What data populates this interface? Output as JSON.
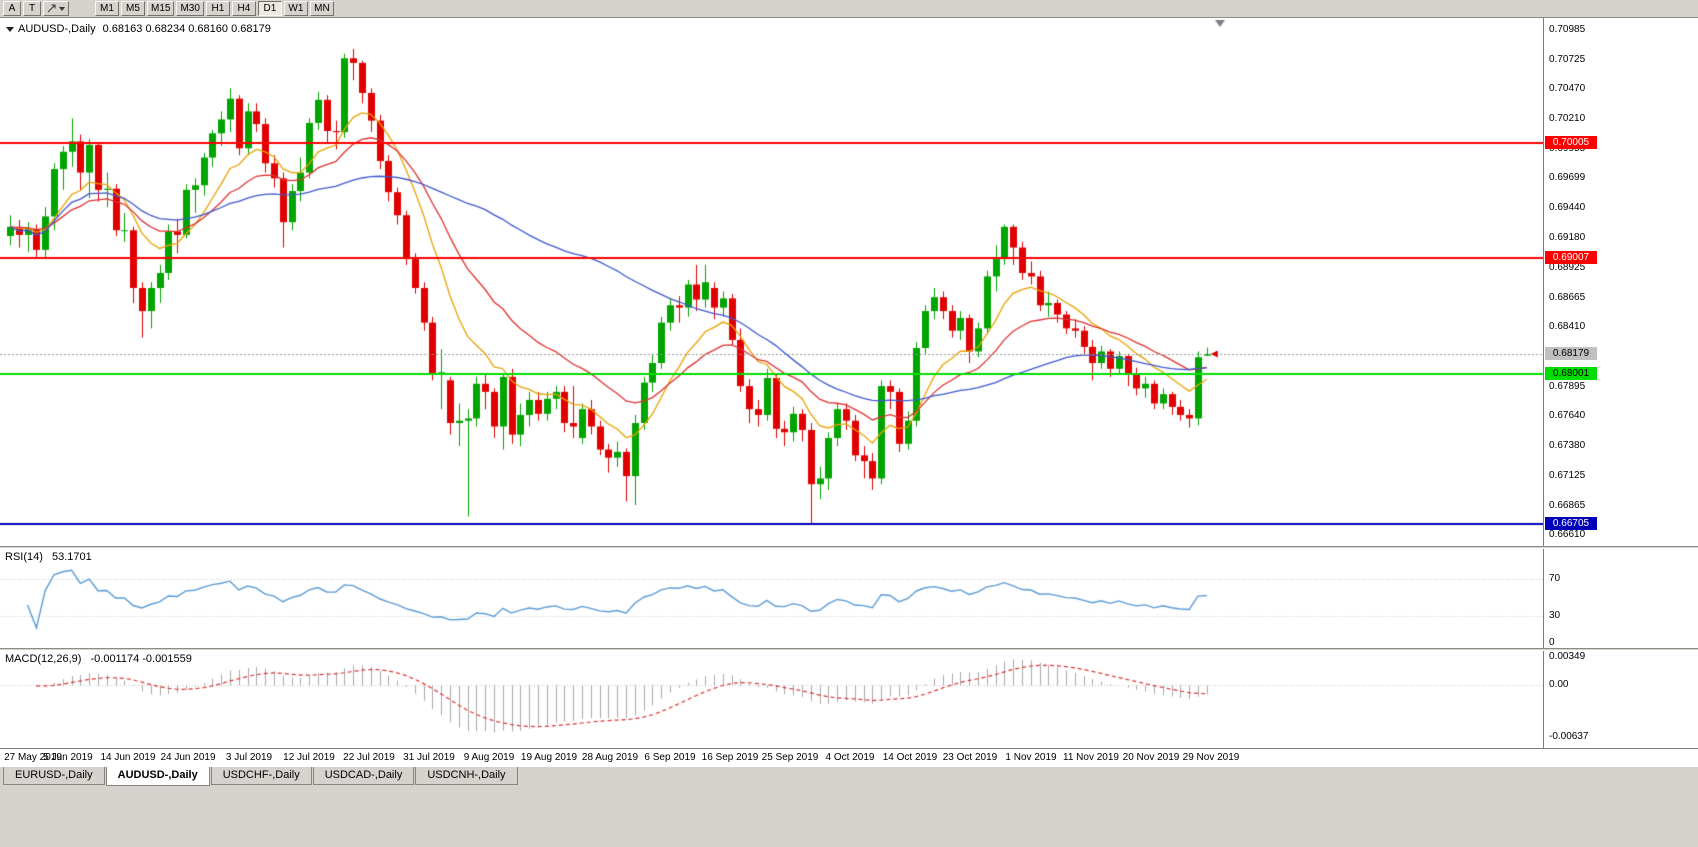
{
  "toolbar": {
    "buttons": [
      "A",
      "T"
    ],
    "timeframes": [
      "M1",
      "M5",
      "M15",
      "M30",
      "H1",
      "H4",
      "D1",
      "W1",
      "MN"
    ],
    "active_timeframe": "D1"
  },
  "chart": {
    "symbol_title": "AUDUSD-,Daily",
    "ohlc_text": "0.68163 0.68234 0.68160 0.68179"
  },
  "colors": {
    "bull": "#00a400",
    "bear": "#e00000",
    "window": "#d6d3ce",
    "background": "#ffffff",
    "bid_line": "#999999",
    "bid_label_bg": "#c0c0c0",
    "axis_text": "#000000"
  },
  "chart_data": {
    "type": "candlestick",
    "symbol": "AUDUSD",
    "timeframe": "Daily",
    "current": {
      "open": 0.68163,
      "high": 0.68234,
      "low": 0.6816,
      "close": 0.68179
    },
    "y_ticks": [
      "0.70985",
      "0.70725",
      "0.70470",
      "0.70210",
      "0.69955",
      "0.69699",
      "0.69440",
      "0.69180",
      "0.68925",
      "0.68665",
      "0.68410",
      "0.68150",
      "0.67895",
      "0.67640",
      "0.67380",
      "0.67125",
      "0.66865",
      "0.66610"
    ],
    "x_labels": [
      "27 May 2019",
      "5 Jun 2019",
      "14 Jun 2019",
      "24 Jun 2019",
      "3 Jul 2019",
      "12 Jul 2019",
      "22 Jul 2019",
      "31 Jul 2019",
      "9 Aug 2019",
      "19 Aug 2019",
      "28 Aug 2019",
      "6 Sep 2019",
      "16 Sep 2019",
      "25 Sep 2019",
      "4 Oct 2019",
      "14 Oct 2019",
      "23 Oct 2019",
      "1 Nov 2019",
      "11 Nov 2019",
      "20 Nov 2019",
      "29 Nov 2019"
    ],
    "levels": [
      {
        "price": 0.70005,
        "label": "0.70005",
        "color": "#ff0000",
        "text_color": "#ffffff"
      },
      {
        "price": 0.69007,
        "label": "0.69007",
        "color": "#ff0000",
        "text_color": "#ffffff"
      },
      {
        "price": 0.68001,
        "label": "0.68001",
        "color": "#00dd00",
        "text_color": "#000000"
      },
      {
        "price": 0.66705,
        "label": "0.66705",
        "color": "#0000bb",
        "text_color": "#ffffff"
      }
    ],
    "bid": {
      "price": 0.68179,
      "label": "0.68179"
    },
    "moving_averages": [
      {
        "type": "ema",
        "period": 10,
        "color": "#e8a200"
      },
      {
        "type": "ema",
        "period": 21,
        "color": "#e03232"
      },
      {
        "type": "sma",
        "period": 50,
        "color": "#3f58cf"
      }
    ],
    "indicators": {
      "rsi": {
        "label": "RSI(14)",
        "value": "53.1701",
        "period": 14,
        "levels": [
          70,
          30
        ],
        "axis_labels": [
          "70",
          "30",
          "0"
        ],
        "color": "#5b9bd5"
      },
      "macd": {
        "label": "MACD(12,26,9)",
        "value": "-0.001174 -0.001559",
        "fast": 12,
        "slow": 26,
        "signal": 9,
        "axis_labels": [
          {
            "text": "0.00349",
            "value": 0.00349
          },
          {
            "text": "0.00",
            "value": 0
          },
          {
            "text": "-0.00637",
            "value": -0.00637
          }
        ],
        "hist_color": "#a8a8a8",
        "signal_color": "#e03232"
      }
    },
    "candles": [
      [
        0.692,
        0.6938,
        0.6912,
        0.6928
      ],
      [
        0.6928,
        0.6934,
        0.691,
        0.6921
      ],
      [
        0.6921,
        0.6932,
        0.6906,
        0.6926
      ],
      [
        0.6926,
        0.693,
        0.6902,
        0.6908
      ],
      [
        0.6908,
        0.6945,
        0.69,
        0.6937
      ],
      [
        0.6937,
        0.6983,
        0.6925,
        0.6978
      ],
      [
        0.6978,
        0.6998,
        0.696,
        0.6993
      ],
      [
        0.6993,
        0.7022,
        0.698,
        0.7002
      ],
      [
        0.7002,
        0.7008,
        0.696,
        0.6975
      ],
      [
        0.6975,
        0.7004,
        0.6953,
        0.6999
      ],
      [
        0.6999,
        0.7,
        0.695,
        0.696
      ],
      [
        0.696,
        0.6975,
        0.6945,
        0.6961
      ],
      [
        0.6961,
        0.6965,
        0.692,
        0.6925
      ],
      [
        0.6925,
        0.694,
        0.6915,
        0.6925
      ],
      [
        0.6925,
        0.6928,
        0.6862,
        0.6875
      ],
      [
        0.6875,
        0.688,
        0.6832,
        0.6855
      ],
      [
        0.6855,
        0.688,
        0.684,
        0.6875
      ],
      [
        0.6875,
        0.6895,
        0.6862,
        0.6888
      ],
      [
        0.6888,
        0.693,
        0.6882,
        0.6924
      ],
      [
        0.6924,
        0.6935,
        0.6905,
        0.6921
      ],
      [
        0.6921,
        0.6965,
        0.6918,
        0.696
      ],
      [
        0.696,
        0.697,
        0.694,
        0.6964
      ],
      [
        0.6964,
        0.6992,
        0.6955,
        0.6988
      ],
      [
        0.6988,
        0.7012,
        0.698,
        0.7009
      ],
      [
        0.7009,
        0.7028,
        0.6998,
        0.7021
      ],
      [
        0.7021,
        0.7048,
        0.701,
        0.7039
      ],
      [
        0.7039,
        0.7042,
        0.699,
        0.6996
      ],
      [
        0.6996,
        0.7035,
        0.699,
        0.7028
      ],
      [
        0.7028,
        0.7035,
        0.701,
        0.7017
      ],
      [
        0.7017,
        0.7022,
        0.6975,
        0.6983
      ],
      [
        0.6983,
        0.699,
        0.6962,
        0.697
      ],
      [
        0.697,
        0.6975,
        0.691,
        0.6932
      ],
      [
        0.6932,
        0.6965,
        0.6925,
        0.6959
      ],
      [
        0.6959,
        0.6988,
        0.695,
        0.6975
      ],
      [
        0.6975,
        0.7022,
        0.697,
        0.7018
      ],
      [
        0.7018,
        0.7045,
        0.7012,
        0.7038
      ],
      [
        0.7038,
        0.7042,
        0.7,
        0.7011
      ],
      [
        0.7011,
        0.702,
        0.6995,
        0.701
      ],
      [
        0.701,
        0.7078,
        0.7005,
        0.7074
      ],
      [
        0.7074,
        0.7082,
        0.7055,
        0.707
      ],
      [
        0.707,
        0.7072,
        0.7035,
        0.7044
      ],
      [
        0.7044,
        0.7048,
        0.701,
        0.702
      ],
      [
        0.702,
        0.7025,
        0.6978,
        0.6985
      ],
      [
        0.6985,
        0.699,
        0.695,
        0.6958
      ],
      [
        0.6958,
        0.6962,
        0.693,
        0.6938
      ],
      [
        0.6938,
        0.6942,
        0.6895,
        0.69
      ],
      [
        0.69,
        0.6905,
        0.687,
        0.6875
      ],
      [
        0.6875,
        0.688,
        0.6838,
        0.6845
      ],
      [
        0.6845,
        0.685,
        0.6795,
        0.68
      ],
      [
        0.68,
        0.6822,
        0.677,
        0.6802
      ],
      [
        0.6795,
        0.6798,
        0.6748,
        0.6758
      ],
      [
        0.6758,
        0.6775,
        0.6738,
        0.676
      ],
      [
        0.676,
        0.677,
        0.6677,
        0.6762
      ],
      [
        0.6762,
        0.6798,
        0.6755,
        0.6792
      ],
      [
        0.6792,
        0.68,
        0.677,
        0.6785
      ],
      [
        0.6785,
        0.6788,
        0.6745,
        0.6755
      ],
      [
        0.6755,
        0.68,
        0.6735,
        0.6798
      ],
      [
        0.6798,
        0.6805,
        0.674,
        0.6748
      ],
      [
        0.6748,
        0.6775,
        0.6738,
        0.6765
      ],
      [
        0.6765,
        0.6785,
        0.6755,
        0.6778
      ],
      [
        0.6778,
        0.6785,
        0.676,
        0.6766
      ],
      [
        0.6766,
        0.6785,
        0.676,
        0.6779
      ],
      [
        0.6779,
        0.679,
        0.677,
        0.6785
      ],
      [
        0.6785,
        0.679,
        0.675,
        0.6758
      ],
      [
        0.6758,
        0.679,
        0.6745,
        0.6755
      ],
      [
        0.6745,
        0.6775,
        0.674,
        0.677
      ],
      [
        0.677,
        0.6778,
        0.6748,
        0.6755
      ],
      [
        0.6755,
        0.676,
        0.673,
        0.6735
      ],
      [
        0.6735,
        0.674,
        0.6715,
        0.6728
      ],
      [
        0.6728,
        0.6742,
        0.672,
        0.6733
      ],
      [
        0.6733,
        0.6736,
        0.669,
        0.6712
      ],
      [
        0.6712,
        0.6765,
        0.6687,
        0.6758
      ],
      [
        0.6758,
        0.6798,
        0.6752,
        0.6793
      ],
      [
        0.6793,
        0.6818,
        0.6785,
        0.681
      ],
      [
        0.681,
        0.685,
        0.6805,
        0.6845
      ],
      [
        0.6845,
        0.6866,
        0.6838,
        0.686
      ],
      [
        0.686,
        0.6868,
        0.6845,
        0.6858
      ],
      [
        0.6858,
        0.6882,
        0.685,
        0.6878
      ],
      [
        0.6878,
        0.6895,
        0.6855,
        0.6865
      ],
      [
        0.6865,
        0.6895,
        0.6858,
        0.688
      ],
      [
        0.6875,
        0.688,
        0.6848,
        0.6858
      ],
      [
        0.6858,
        0.6872,
        0.685,
        0.6866
      ],
      [
        0.6866,
        0.687,
        0.6825,
        0.683
      ],
      [
        0.683,
        0.684,
        0.6785,
        0.679
      ],
      [
        0.679,
        0.6796,
        0.6758,
        0.677
      ],
      [
        0.677,
        0.6778,
        0.6755,
        0.6765
      ],
      [
        0.6765,
        0.6805,
        0.676,
        0.6797
      ],
      [
        0.6797,
        0.68,
        0.6745,
        0.6753
      ],
      [
        0.6753,
        0.676,
        0.6738,
        0.675
      ],
      [
        0.675,
        0.6772,
        0.6742,
        0.6766
      ],
      [
        0.6766,
        0.677,
        0.6742,
        0.6752
      ],
      [
        0.6752,
        0.6758,
        0.6671,
        0.6705
      ],
      [
        0.6705,
        0.672,
        0.6692,
        0.671
      ],
      [
        0.671,
        0.675,
        0.67,
        0.6745
      ],
      [
        0.6745,
        0.6775,
        0.6738,
        0.677
      ],
      [
        0.677,
        0.6775,
        0.6752,
        0.676
      ],
      [
        0.676,
        0.6765,
        0.6725,
        0.673
      ],
      [
        0.673,
        0.6738,
        0.671,
        0.6725
      ],
      [
        0.6725,
        0.6732,
        0.67,
        0.671
      ],
      [
        0.671,
        0.6795,
        0.6705,
        0.679
      ],
      [
        0.679,
        0.6795,
        0.677,
        0.6785
      ],
      [
        0.6785,
        0.6788,
        0.6733,
        0.674
      ],
      [
        0.674,
        0.6768,
        0.6735,
        0.676
      ],
      [
        0.676,
        0.6828,
        0.6755,
        0.6823
      ],
      [
        0.6823,
        0.686,
        0.6818,
        0.6855
      ],
      [
        0.6855,
        0.6875,
        0.6848,
        0.6867
      ],
      [
        0.6867,
        0.6872,
        0.6848,
        0.6855
      ],
      [
        0.6855,
        0.686,
        0.6832,
        0.6838
      ],
      [
        0.6838,
        0.6855,
        0.683,
        0.6849
      ],
      [
        0.6849,
        0.6852,
        0.681,
        0.682
      ],
      [
        0.682,
        0.6845,
        0.6815,
        0.684
      ],
      [
        0.684,
        0.689,
        0.6835,
        0.6885
      ],
      [
        0.6885,
        0.6912,
        0.6872,
        0.69
      ],
      [
        0.69,
        0.693,
        0.6895,
        0.6928
      ],
      [
        0.6928,
        0.693,
        0.6895,
        0.691
      ],
      [
        0.691,
        0.6915,
        0.6882,
        0.6888
      ],
      [
        0.6888,
        0.6898,
        0.6878,
        0.6885
      ],
      [
        0.6885,
        0.689,
        0.6855,
        0.686
      ],
      [
        0.686,
        0.6872,
        0.685,
        0.6862
      ],
      [
        0.6862,
        0.6865,
        0.6845,
        0.6852
      ],
      [
        0.6852,
        0.6855,
        0.6835,
        0.684
      ],
      [
        0.684,
        0.6848,
        0.6832,
        0.6838
      ],
      [
        0.6838,
        0.6842,
        0.6818,
        0.6824
      ],
      [
        0.6824,
        0.683,
        0.6795,
        0.681
      ],
      [
        0.681,
        0.6825,
        0.6805,
        0.682
      ],
      [
        0.682,
        0.6822,
        0.6798,
        0.6805
      ],
      [
        0.6805,
        0.682,
        0.68,
        0.6816
      ],
      [
        0.6816,
        0.6818,
        0.679,
        0.68
      ],
      [
        0.68,
        0.6806,
        0.6782,
        0.6788
      ],
      [
        0.6788,
        0.6798,
        0.678,
        0.6792
      ],
      [
        0.6792,
        0.6795,
        0.677,
        0.6775
      ],
      [
        0.6775,
        0.6788,
        0.677,
        0.6783
      ],
      [
        0.6783,
        0.6785,
        0.6765,
        0.6772
      ],
      [
        0.6772,
        0.6778,
        0.676,
        0.6765
      ],
      [
        0.6765,
        0.677,
        0.6754,
        0.6762
      ],
      [
        0.6762,
        0.682,
        0.6756,
        0.6815
      ],
      [
        0.68163,
        0.68234,
        0.6816,
        0.68179
      ]
    ]
  },
  "tabs": {
    "items": [
      {
        "label": "EURUSD-,Daily",
        "active": false
      },
      {
        "label": "AUDUSD-,Daily",
        "active": true
      },
      {
        "label": "USDCHF-,Daily",
        "active": false
      },
      {
        "label": "USDCAD-,Daily",
        "active": false
      },
      {
        "label": "USDCNH-,Daily",
        "active": false
      }
    ]
  }
}
